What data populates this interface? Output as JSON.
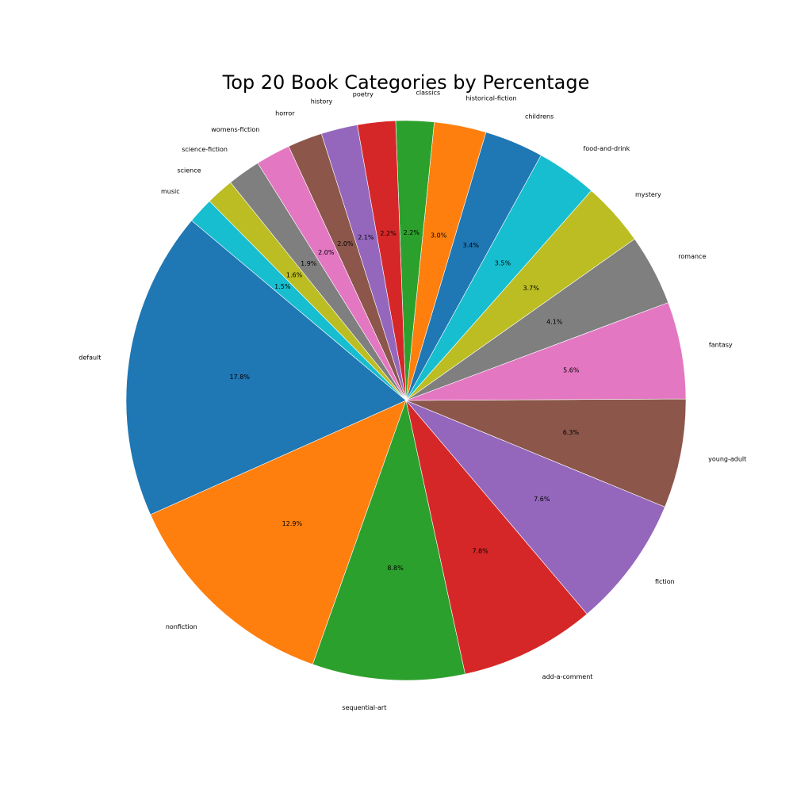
{
  "chart_data": {
    "type": "pie",
    "title": "Top 20 Book Categories by Percentage",
    "start_angle_deg": 140,
    "direction": "counterclockwise",
    "slices": [
      {
        "label": "default",
        "value": 17.8,
        "pct_label": "17.8%",
        "color": "#1f77b4"
      },
      {
        "label": "nonfiction",
        "value": 12.9,
        "pct_label": "12.9%",
        "color": "#ff7f0e"
      },
      {
        "label": "sequential-art",
        "value": 8.8,
        "pct_label": "8.8%",
        "color": "#2ca02c"
      },
      {
        "label": "add-a-comment",
        "value": 7.8,
        "pct_label": "7.8%",
        "color": "#d62728"
      },
      {
        "label": "fiction",
        "value": 7.6,
        "pct_label": "7.6%",
        "color": "#9467bd"
      },
      {
        "label": "young-adult",
        "value": 6.3,
        "pct_label": "6.3%",
        "color": "#8c564b"
      },
      {
        "label": "fantasy",
        "value": 5.6,
        "pct_label": "5.6%",
        "color": "#e377c2"
      },
      {
        "label": "romance",
        "value": 4.1,
        "pct_label": "4.1%",
        "color": "#7f7f7f"
      },
      {
        "label": "mystery",
        "value": 3.7,
        "pct_label": "3.7%",
        "color": "#bcbd22"
      },
      {
        "label": "food-and-drink",
        "value": 3.5,
        "pct_label": "3.5%",
        "color": "#17becf"
      },
      {
        "label": "childrens",
        "value": 3.4,
        "pct_label": "3.4%",
        "color": "#1f77b4"
      },
      {
        "label": "historical-fiction",
        "value": 3.0,
        "pct_label": "3.0%",
        "color": "#ff7f0e"
      },
      {
        "label": "classics",
        "value": 2.2,
        "pct_label": "2.2%",
        "color": "#2ca02c"
      },
      {
        "label": "poetry",
        "value": 2.2,
        "pct_label": "2.2%",
        "color": "#d62728"
      },
      {
        "label": "history",
        "value": 2.1,
        "pct_label": "2.1%",
        "color": "#9467bd"
      },
      {
        "label": "horror",
        "value": 2.0,
        "pct_label": "2.0%",
        "color": "#8c564b"
      },
      {
        "label": "womens-fiction",
        "value": 2.0,
        "pct_label": "2.0%",
        "color": "#e377c2"
      },
      {
        "label": "science-fiction",
        "value": 1.9,
        "pct_label": "1.9%",
        "color": "#7f7f7f"
      },
      {
        "label": "science",
        "value": 1.6,
        "pct_label": "1.6%",
        "color": "#bcbd22"
      },
      {
        "label": "music",
        "value": 1.5,
        "pct_label": "1.5%",
        "color": "#17becf"
      }
    ]
  }
}
